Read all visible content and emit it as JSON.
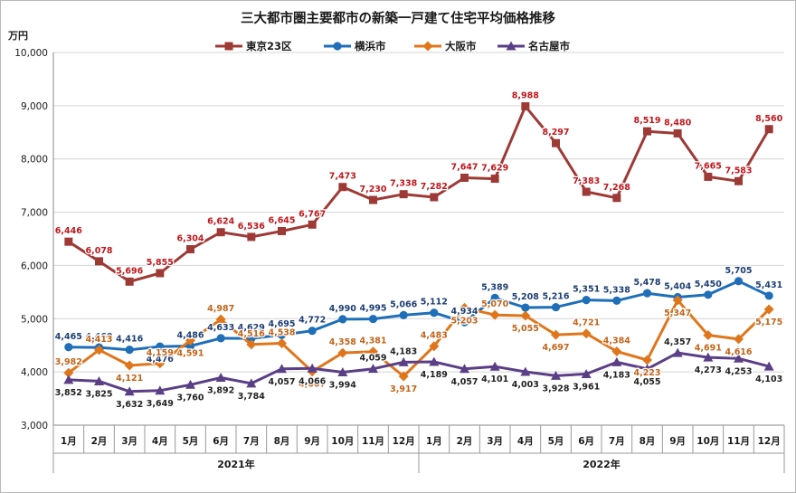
{
  "chart_data": {
    "type": "line",
    "title": "三大都市圏主要都市の新築一戸建て住宅平均価格推移",
    "ylabel": "万円",
    "ylim": [
      3000,
      10000
    ],
    "yticks": [
      "3,000",
      "4,000",
      "5,000",
      "6,000",
      "7,000",
      "8,000",
      "9,000",
      "10,000"
    ],
    "categories": [
      "1月",
      "2月",
      "3月",
      "4月",
      "5月",
      "6月",
      "7月",
      "8月",
      "9月",
      "10月",
      "11月",
      "12月",
      "1月",
      "2月",
      "3月",
      "4月",
      "5月",
      "6月",
      "7月",
      "8月",
      "9月",
      "10月",
      "11月",
      "12月"
    ],
    "year_groups": [
      {
        "label": "2021年",
        "start": 0,
        "end": 11
      },
      {
        "label": "2022年",
        "start": 12,
        "end": 23
      }
    ],
    "legend_position": "top-center",
    "grid": "horizontal",
    "series": [
      {
        "name": "東京23区",
        "color": "#9e3a36",
        "marker": "square",
        "values": [
          6446,
          6078,
          5696,
          5855,
          6304,
          6624,
          6536,
          6645,
          6767,
          7473,
          7230,
          7338,
          7282,
          7647,
          7629,
          8988,
          8297,
          7383,
          7268,
          8519,
          8480,
          7665,
          7583,
          8560
        ],
        "labels": [
          "6,446",
          "6,078",
          "5,696",
          "5,855",
          "6,304",
          "6,624",
          "6,536",
          "6,645",
          "6,767",
          "7,473",
          "7,230",
          "7,338",
          "7,282",
          "7,647",
          "7,629",
          "8,988",
          "8,297",
          "7,383",
          "7,268",
          "8,519",
          "8,480",
          "7,665",
          "7,583",
          "8,560"
        ]
      },
      {
        "name": "横浜市",
        "color": "#1f6fb8",
        "marker": "circle",
        "values": [
          4465,
          4460,
          4416,
          4476,
          4486,
          4633,
          4629,
          4695,
          4772,
          4990,
          4995,
          5066,
          5112,
          4934,
          5389,
          5208,
          5216,
          5351,
          5338,
          5478,
          5404,
          5450,
          5705,
          5431
        ],
        "labels": [
          "4,465",
          "4,460",
          "4,416",
          "4,476",
          "4,486",
          "4,633",
          "4,629",
          "4,695",
          "4,772",
          "4,990",
          "4,995",
          "5,066",
          "5,112",
          "4,934",
          "5,389",
          "5,208",
          "5,216",
          "5,351",
          "5,338",
          "5,478",
          "5,404",
          "5,450",
          "5,705",
          "5,431"
        ]
      },
      {
        "name": "大阪市",
        "color": "#e0761b",
        "marker": "diamond",
        "values": [
          3982,
          4413,
          4121,
          4159,
          4591,
          4987,
          4516,
          4538,
          4007,
          4358,
          4381,
          3917,
          4483,
          5203,
          5070,
          5055,
          4697,
          4721,
          4384,
          4223,
          5347,
          4691,
          4616,
          5175
        ],
        "labels": [
          "3,982",
          "4,413",
          "4,121",
          "4,159",
          "4,591",
          "4,987",
          "4,516",
          "4,538",
          "4,007",
          "4,358",
          "4,381",
          "3,917",
          "4,483",
          "5,203",
          "5,070",
          "5,055",
          "4,697",
          "4,721",
          "4,384",
          "4,223",
          "5,347",
          "4,691",
          "4,616",
          "5,175"
        ]
      },
      {
        "name": "名古屋市",
        "color": "#5b3f86",
        "marker": "triangle",
        "values": [
          3852,
          3825,
          3632,
          3649,
          3760,
          3892,
          3784,
          4057,
          4066,
          3994,
          4059,
          4183,
          4189,
          4057,
          4101,
          4003,
          3928,
          3961,
          4183,
          4055,
          4357,
          4273,
          4253,
          4103
        ],
        "labels": [
          "3,852",
          "3,825",
          "3,632",
          "3,649",
          "3,760",
          "3,892",
          "3,784",
          "4,057",
          "4,066",
          "3,994",
          "4,059",
          "4,183",
          "4,189",
          "4,057",
          "4,101",
          "4,003",
          "3,928",
          "3,961",
          "4,183",
          "4,055",
          "4,357",
          "4,273",
          "4,253",
          "4,103"
        ]
      }
    ]
  }
}
